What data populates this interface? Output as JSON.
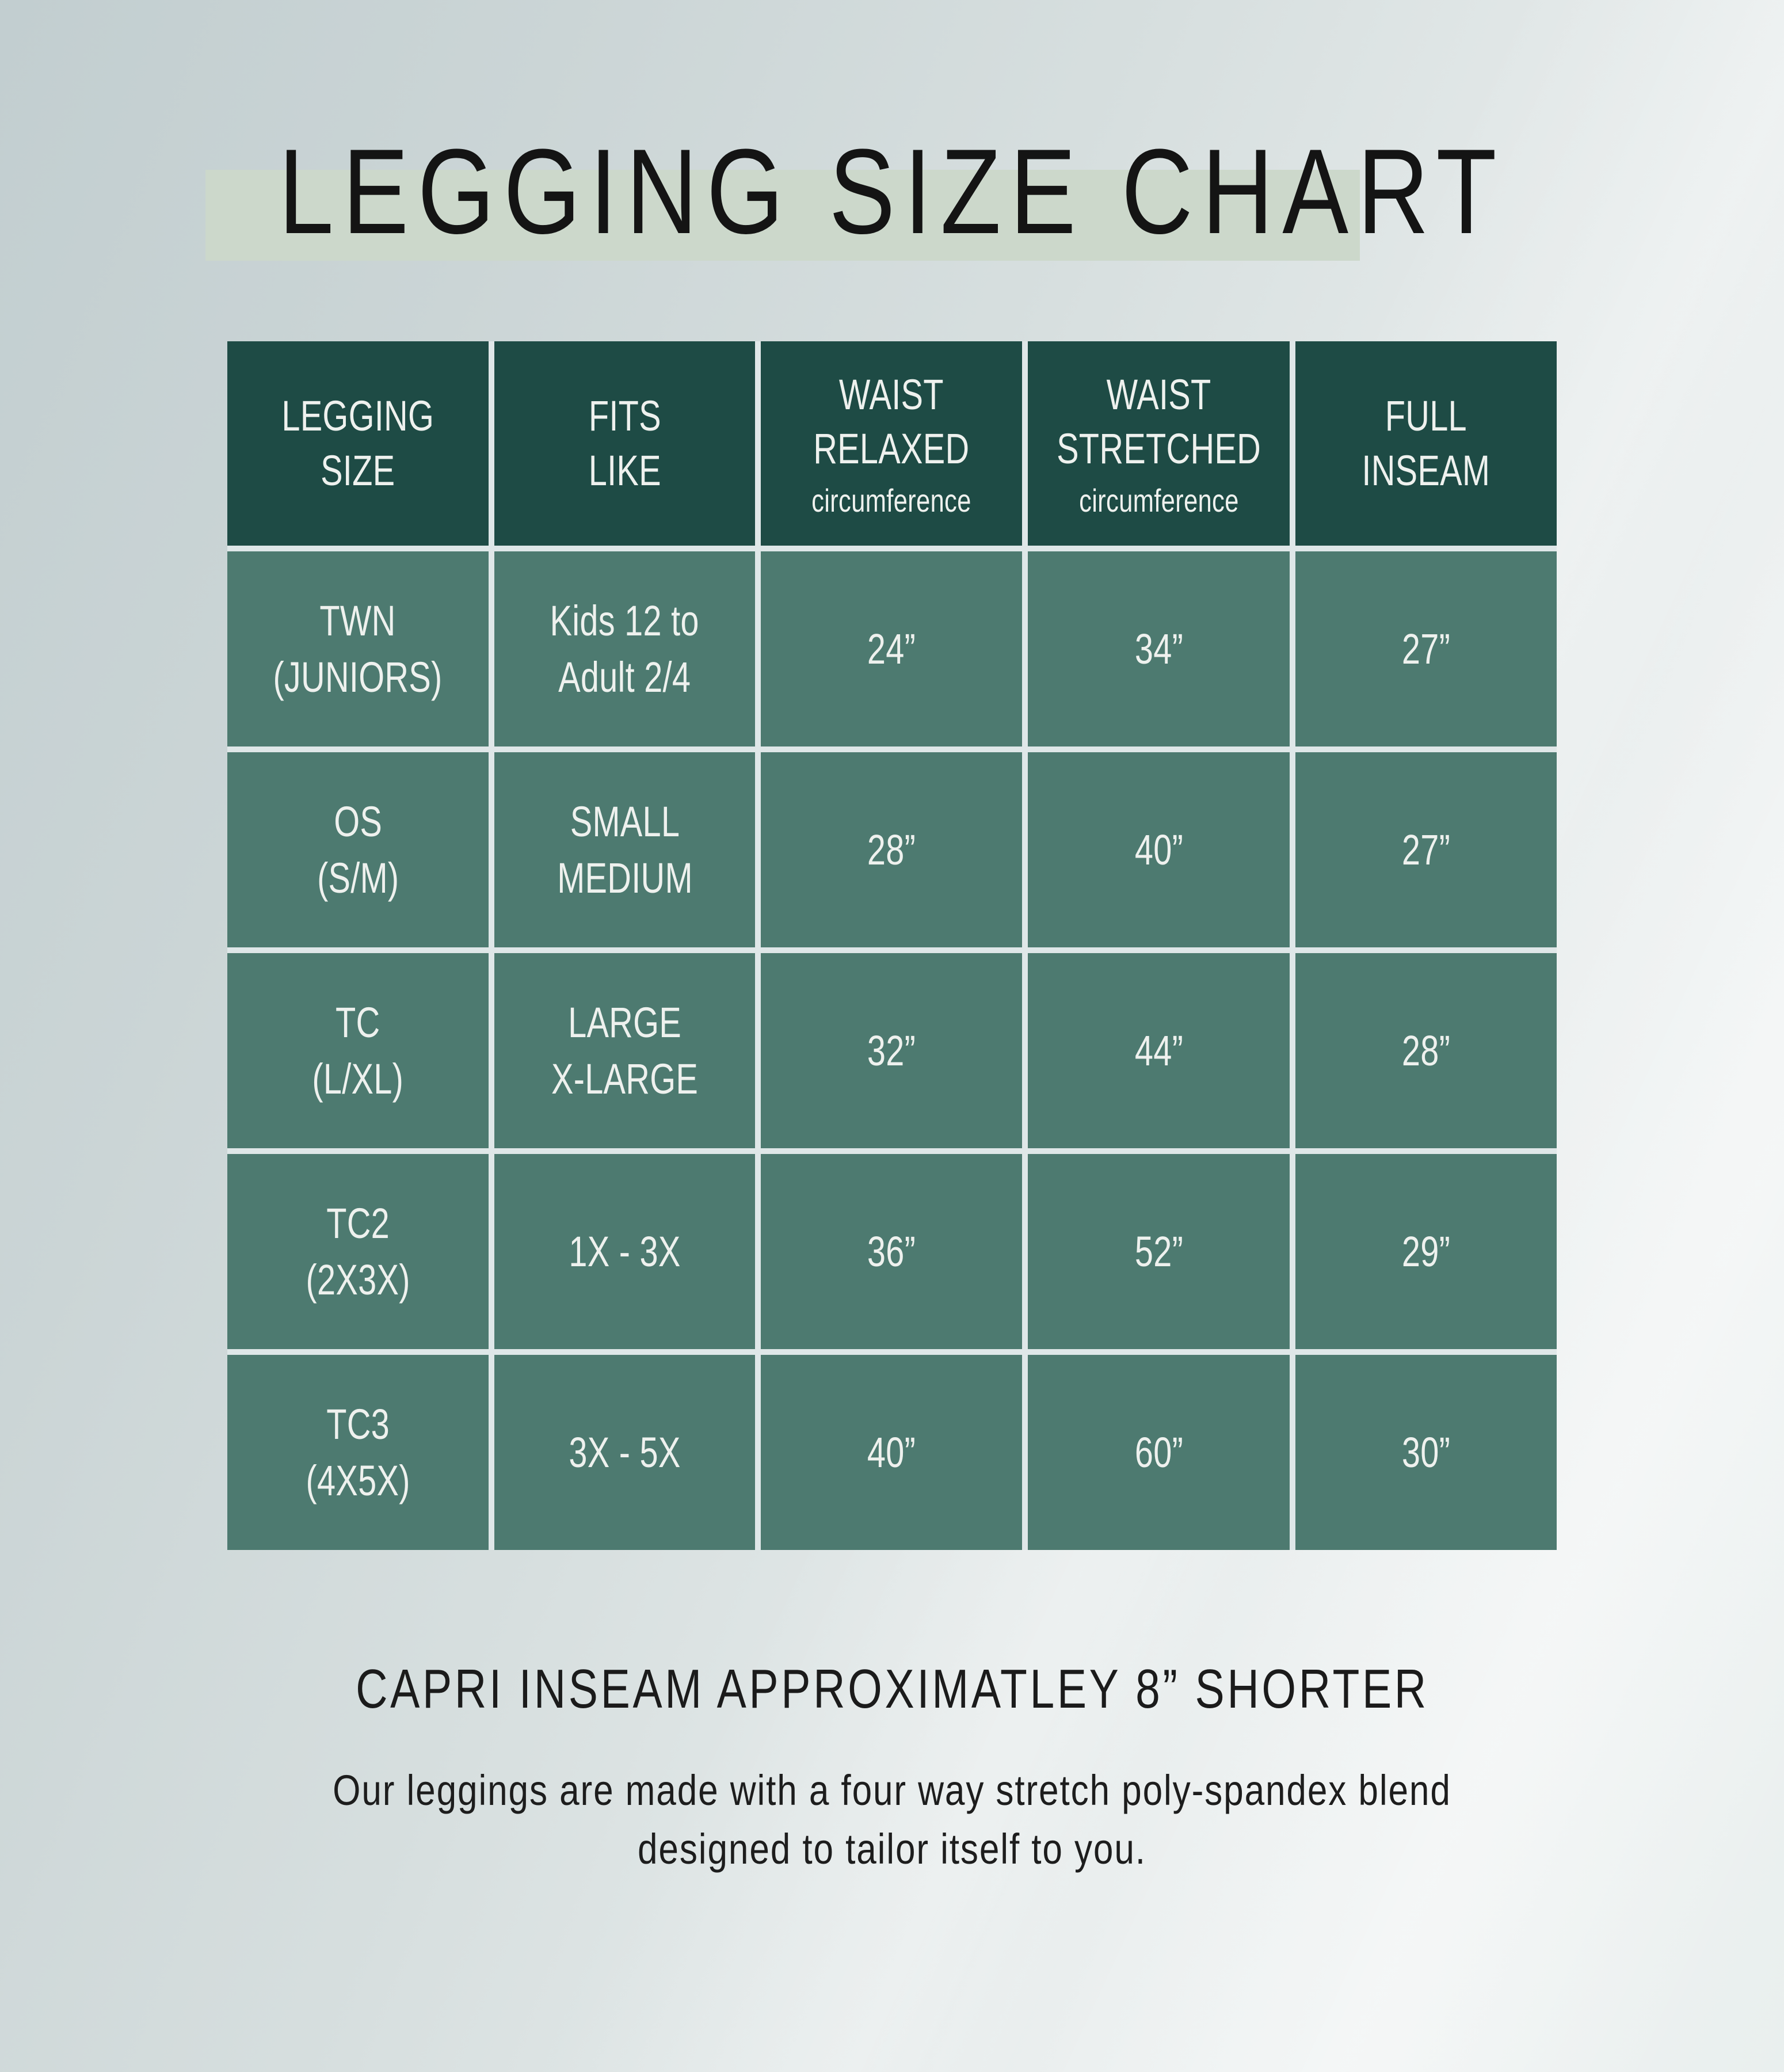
{
  "chart_data": {
    "type": "table",
    "title": "LEGGING SIZE CHART",
    "columns": [
      {
        "label": "LEGGING\nSIZE",
        "sub": ""
      },
      {
        "label": "FITS\nLIKE",
        "sub": ""
      },
      {
        "label": "WAIST\nRELAXED",
        "sub": "circumference"
      },
      {
        "label": "WAIST\nSTRETCHED",
        "sub": "circumference"
      },
      {
        "label": "FULL\nINSEAM",
        "sub": ""
      }
    ],
    "rows": [
      [
        "TWN\n(JUNIORS)",
        "Kids 12 to\nAdult 2/4",
        "24”",
        "34”",
        "27”"
      ],
      [
        "OS\n(S/M)",
        "SMALL\nMEDIUM",
        "28”",
        "40”",
        "27”"
      ],
      [
        "TC\n(L/XL)",
        "LARGE\nX-LARGE",
        "32”",
        "44”",
        "28”"
      ],
      [
        "TC2\n(2X3X)",
        "1X - 3X",
        "36”",
        "52”",
        "29”"
      ],
      [
        "TC3\n(4X5X)",
        "3X - 5X",
        "40”",
        "60”",
        "30”"
      ]
    ],
    "notes": {
      "capri": "CAPRI INSEAM APPROXIMATLEY 8” SHORTER",
      "description": "Our leggings are made with a four way stretch poly-spandex blend\ndesigned to tailor itself to you."
    },
    "layout_hints": {
      "header_background": "#1e4b45",
      "cell_background": "#4d7a70",
      "grid_line_color": "#dfe7e8",
      "title_highlight_color": "#ccd8cb",
      "cell_text_color": "#eef1ee",
      "title_text_color": "#141414"
    }
  }
}
